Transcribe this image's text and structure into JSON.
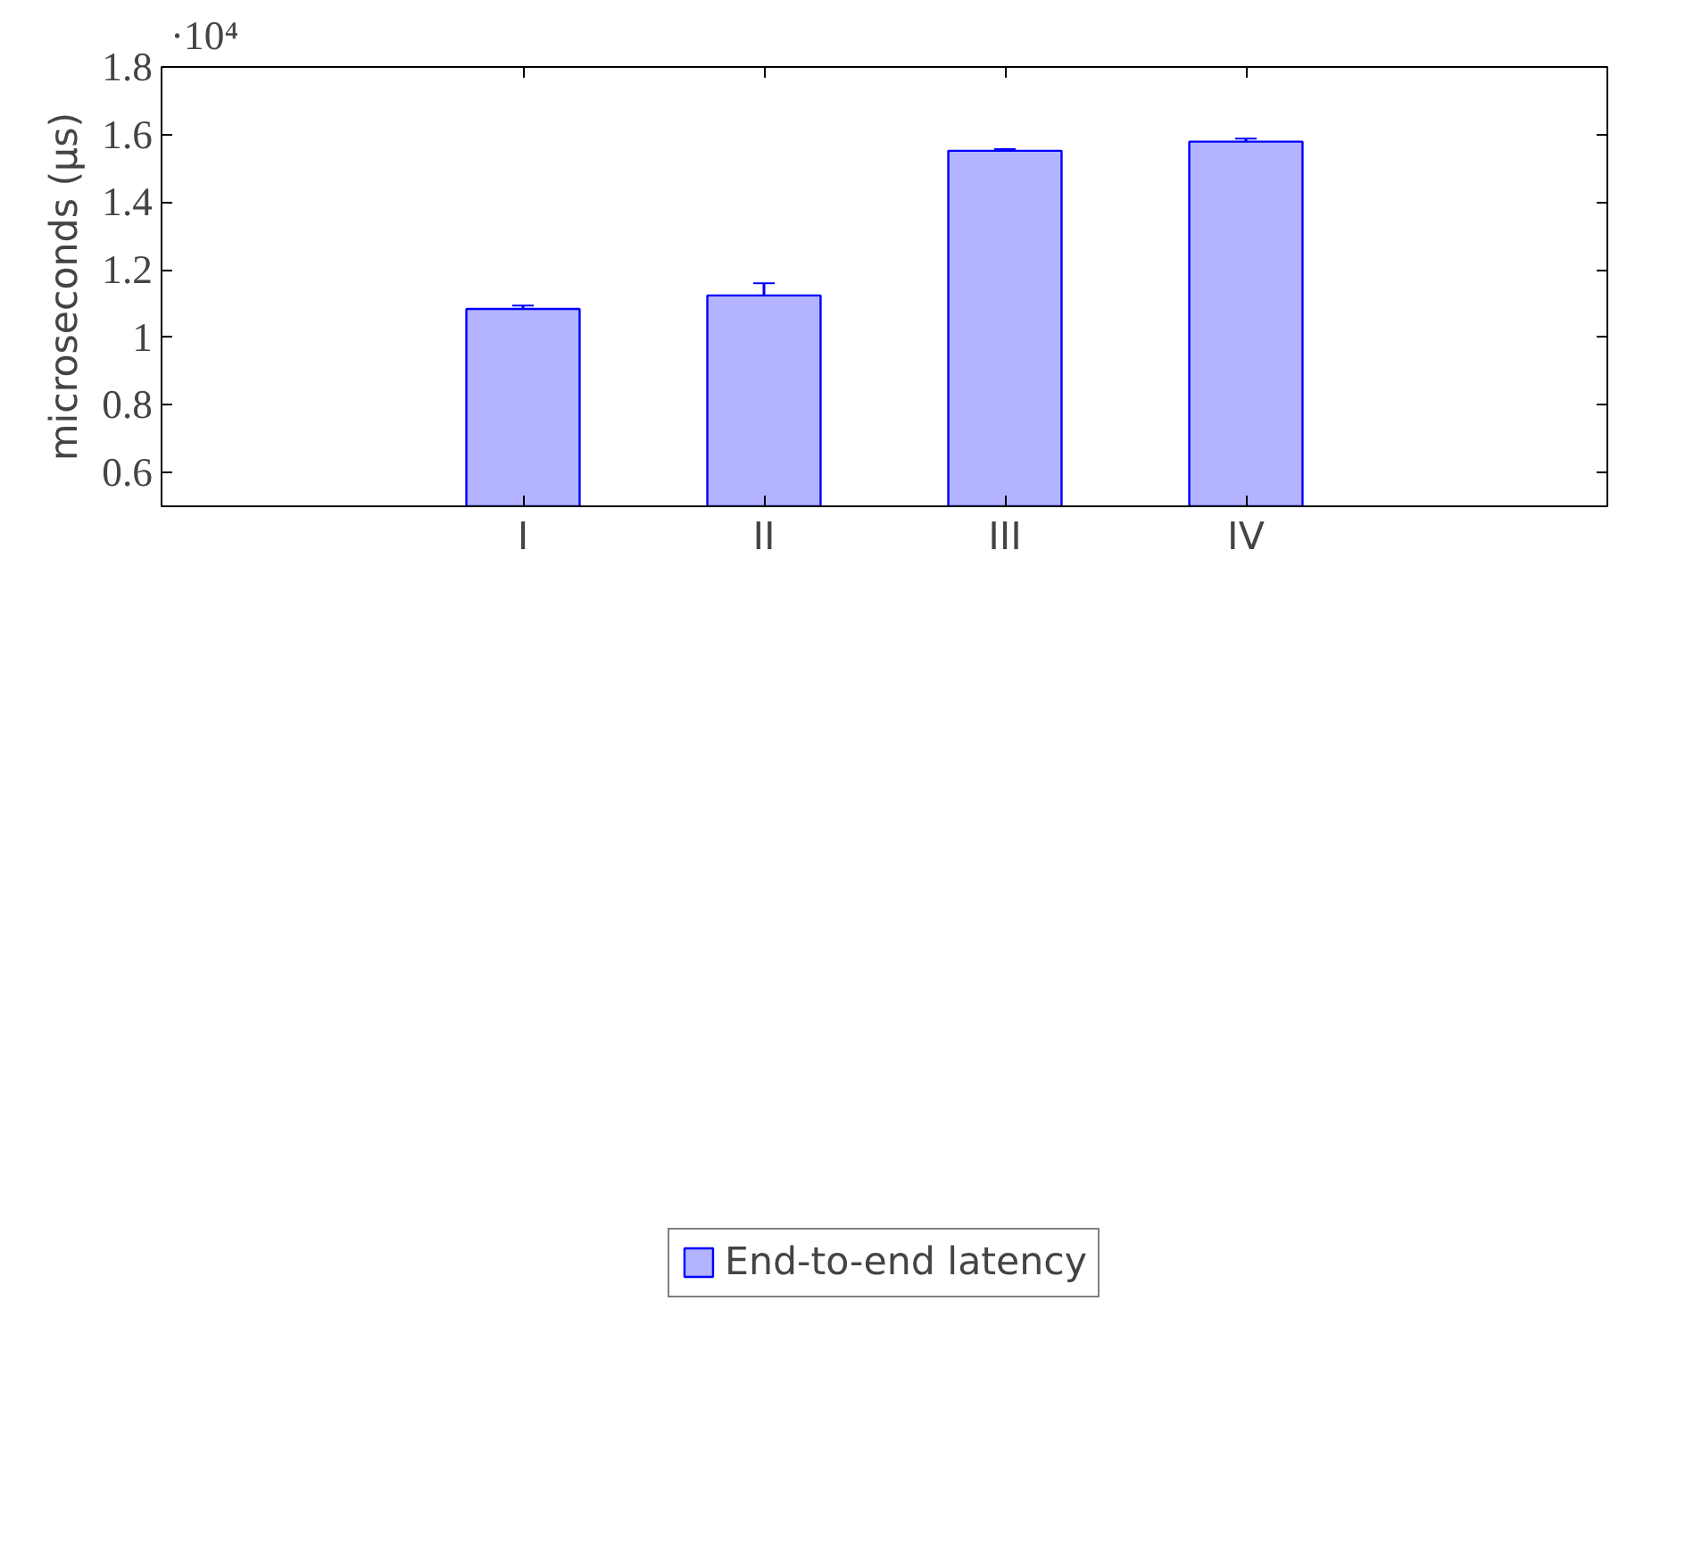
{
  "chart_data": {
    "type": "bar",
    "ylabel": "microseconds (μs)",
    "categories": [
      "I",
      "II",
      "III",
      "IV"
    ],
    "series": [
      {
        "name": "End-to-end latency",
        "color": "#b3b3ff",
        "values": [
          1.084,
          1.124,
          1.552,
          1.579
        ],
        "errors": [
          0.01,
          0.036,
          0.005,
          0.009
        ]
      }
    ],
    "ylim": [
      0.5,
      1.8
    ],
    "yticks": [
      0.6,
      0.8,
      1,
      1.2,
      1.4,
      1.6,
      1.8
    ],
    "annotations": [
      "·10⁴"
    ],
    "grid": false,
    "legend": "bottom"
  }
}
